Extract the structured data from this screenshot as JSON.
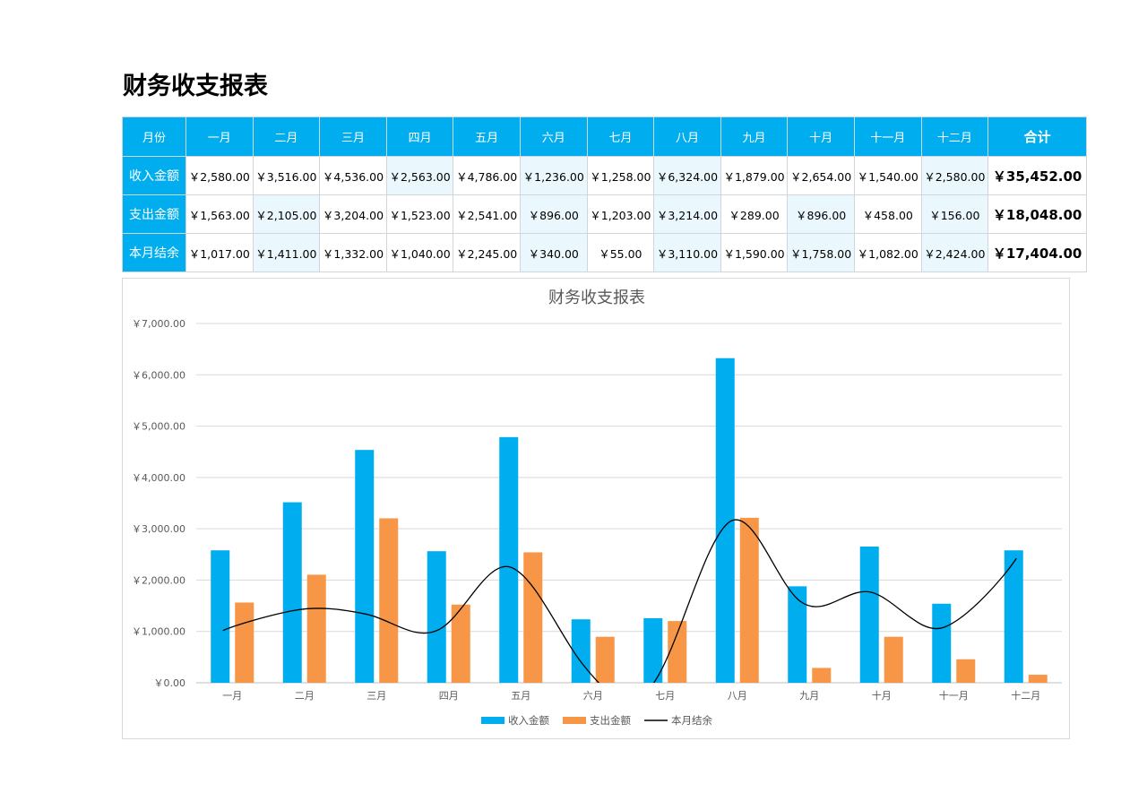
{
  "page": {
    "title": "财务收支报表"
  },
  "table": {
    "header_label": "月份",
    "months": [
      "一月",
      "二月",
      "三月",
      "四月",
      "五月",
      "六月",
      "七月",
      "八月",
      "九月",
      "十月",
      "十一月",
      "十二月"
    ],
    "total_label": "合计",
    "rows": [
      {
        "label": "收入金额",
        "values": [
          "￥2,580.00",
          "￥3,516.00",
          "￥4,536.00",
          "￥2,563.00",
          "￥4,786.00",
          "￥1,236.00",
          "￥1,258.00",
          "￥6,324.00",
          "￥1,879.00",
          "￥2,654.00",
          "￥1,540.00",
          "￥2,580.00"
        ],
        "total": "￥35,452.00"
      },
      {
        "label": "支出金额",
        "values": [
          "￥1,563.00",
          "￥2,105.00",
          "￥3,204.00",
          "￥1,523.00",
          "￥2,541.00",
          "￥896.00",
          "￥1,203.00",
          "￥3,214.00",
          "￥289.00",
          "￥896.00",
          "￥458.00",
          "￥156.00"
        ],
        "total": "￥18,048.00"
      },
      {
        "label": "本月结余",
        "values": [
          "￥1,017.00",
          "￥1,411.00",
          "￥1,332.00",
          "￥1,040.00",
          "￥2,245.00",
          "￥340.00",
          "￥55.00",
          "￥3,110.00",
          "￥1,590.00",
          "￥1,758.00",
          "￥1,082.00",
          "￥2,424.00"
        ],
        "total": "￥17,404.00"
      }
    ]
  },
  "chart_data": {
    "type": "bar",
    "title": "财务收支报表",
    "categories": [
      "一月",
      "二月",
      "三月",
      "四月",
      "五月",
      "六月",
      "七月",
      "八月",
      "九月",
      "十月",
      "十一月",
      "十二月"
    ],
    "series": [
      {
        "name": "收入金额",
        "kind": "bar",
        "color": "#00aeef",
        "values": [
          2580,
          3516,
          4536,
          2563,
          4786,
          1236,
          1258,
          6324,
          1879,
          2654,
          1540,
          2580
        ]
      },
      {
        "name": "支出金额",
        "kind": "bar",
        "color": "#f79646",
        "values": [
          1563,
          2105,
          3204,
          1523,
          2541,
          896,
          1203,
          3214,
          289,
          896,
          458,
          156
        ]
      },
      {
        "name": "本月结余",
        "kind": "line",
        "color": "#000000",
        "values": [
          1017,
          1411,
          1332,
          1040,
          2245,
          340,
          55,
          3110,
          1590,
          1758,
          1082,
          2424
        ]
      }
    ],
    "y_ticks": [
      "￥0.00",
      "￥1,000.00",
      "￥2,000.00",
      "￥3,000.00",
      "￥4,000.00",
      "￥5,000.00",
      "￥6,000.00",
      "￥7,000.00"
    ],
    "ylim": [
      0,
      7000
    ],
    "grid": true,
    "legend_position": "bottom"
  }
}
